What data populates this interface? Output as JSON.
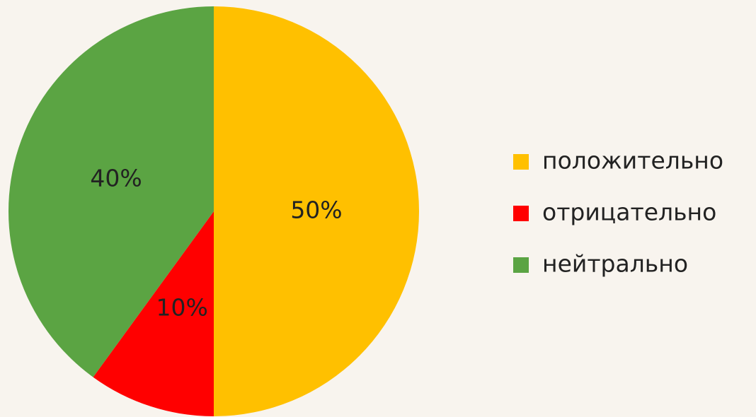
{
  "chart_data": {
    "type": "pie",
    "categories": [
      "положительно",
      "отрицательно",
      "нейтрально"
    ],
    "values": [
      50,
      10,
      40
    ],
    "value_labels": [
      "50%",
      "10%",
      "40%"
    ],
    "colors": [
      "#ffc000",
      "#ff0000",
      "#5ba443"
    ],
    "legend": "right"
  }
}
